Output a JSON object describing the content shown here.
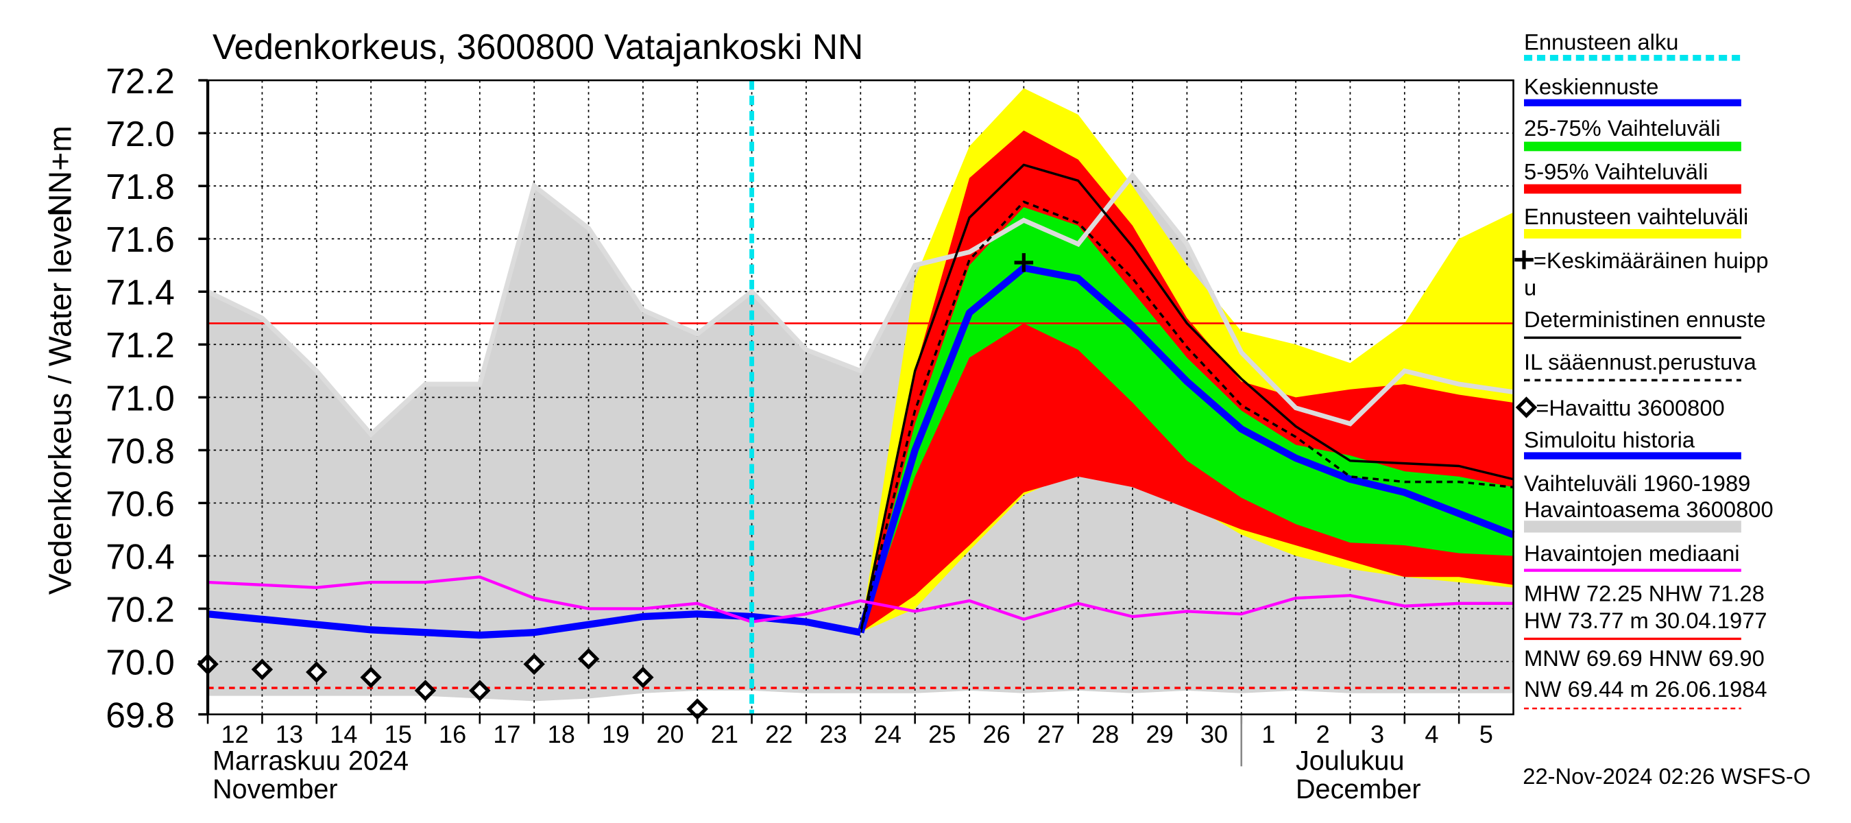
{
  "chart_data": {
    "type": "line",
    "title": "Vedenkorkeus, 3600800 Vatajankoski NN",
    "ylabel": "Vedenkorkeus / Water level",
    "ylabel2": "NN+m",
    "xlim": [
      0,
      24
    ],
    "ylim": [
      69.8,
      72.2
    ],
    "yticks": [
      69.8,
      {
        "value": 70,
        "label": "70.0"
      },
      70.2,
      70.4,
      70.6,
      70.8,
      {
        "value": 71,
        "label": "71.0"
      },
      71.2,
      71.4,
      71.6,
      71.8,
      {
        "value": 72,
        "label": "72.0"
      },
      72.2
    ],
    "xticks": [
      {
        "value": 0,
        "label": "12"
      },
      {
        "value": 1,
        "label": "13"
      },
      {
        "value": 2,
        "label": "14"
      },
      {
        "value": 3,
        "label": "15"
      },
      {
        "value": 4,
        "label": "16"
      },
      {
        "value": 5,
        "label": "17"
      },
      {
        "value": 6,
        "label": "18"
      },
      {
        "value": 7,
        "label": "19"
      },
      {
        "value": 8,
        "label": "20"
      },
      {
        "value": 9,
        "label": "21"
      },
      {
        "value": 10,
        "label": "22"
      },
      {
        "value": 11,
        "label": "23"
      },
      {
        "value": 12,
        "label": "24"
      },
      {
        "value": 13,
        "label": "25"
      },
      {
        "value": 14,
        "label": "26"
      },
      {
        "value": 15,
        "label": "27"
      },
      {
        "value": 16,
        "label": "28"
      },
      {
        "value": 17,
        "label": "29"
      },
      {
        "value": 18,
        "label": "30"
      },
      {
        "value": 19,
        "label": "1"
      },
      {
        "value": 20,
        "label": "2"
      },
      {
        "value": 21,
        "label": "3"
      },
      {
        "value": 22,
        "label": "4"
      },
      {
        "value": 23,
        "label": "5"
      }
    ],
    "grid": true,
    "x_groups": [
      {
        "value": 0,
        "label": "Marraskuu 2024",
        "label2": "November"
      },
      {
        "value": 19,
        "label": "Joulukuu",
        "label2": "December"
      }
    ],
    "forecast_start": {
      "name": "Ennusteen alku",
      "x": 10,
      "color": "#00e5ee"
    },
    "bands": [
      {
        "name": "Vaihteluväli 1960-1989",
        "name2": " Havaintoasema 3600800",
        "color": "#d3d3d3",
        "x": [
          0,
          1,
          2,
          3,
          4,
          5,
          6,
          7,
          8,
          9,
          10,
          11,
          12,
          13,
          14,
          15,
          16,
          17,
          18,
          19,
          20,
          21,
          22,
          23,
          24
        ],
        "upper": [
          71.4,
          71.3,
          71.1,
          70.86,
          71.05,
          71.05,
          71.8,
          71.64,
          71.33,
          71.24,
          71.4,
          71.18,
          71.1,
          71.5,
          71.55,
          71.67,
          71.58,
          71.84,
          71.58,
          71.17,
          70.96,
          70.9,
          71.1,
          71.05,
          71.02
        ],
        "lower": [
          69.87,
          69.87,
          69.87,
          69.87,
          69.87,
          69.86,
          69.85,
          69.86,
          69.88,
          69.89,
          69.89,
          69.88,
          69.88,
          69.88,
          69.89,
          69.88,
          69.89,
          69.88,
          69.89,
          69.88,
          69.89,
          69.88,
          69.88,
          69.88,
          69.88
        ]
      },
      {
        "name": "Ennusteen vaihteluväli",
        "color": "#ffff00",
        "x": [
          12,
          13,
          14,
          15,
          16,
          17,
          18,
          19,
          20,
          21,
          22,
          23,
          24
        ],
        "upper": [
          70.11,
          71.45,
          71.95,
          72.17,
          72.07,
          71.8,
          71.5,
          71.25,
          71.2,
          71.13,
          71.28,
          71.6,
          71.7
        ],
        "lower": [
          70.11,
          70.2,
          70.42,
          70.63,
          70.72,
          70.67,
          70.6,
          70.48,
          70.4,
          70.35,
          70.32,
          70.3,
          70.28
        ]
      },
      {
        "name": "5-95% Vaihteluväli",
        "color": "#ff0000",
        "x": [
          12,
          13,
          14,
          15,
          16,
          17,
          18,
          19,
          20,
          21,
          22,
          23,
          24
        ],
        "upper": [
          70.11,
          71.1,
          71.83,
          72.01,
          71.9,
          71.65,
          71.3,
          71.06,
          71.0,
          71.03,
          71.05,
          71.01,
          70.98
        ],
        "lower": [
          70.11,
          70.25,
          70.44,
          70.64,
          70.7,
          70.66,
          70.58,
          70.5,
          70.44,
          70.38,
          70.32,
          70.32,
          70.29
        ]
      },
      {
        "name": "25-75% Vaihteluväli",
        "color": "#00ee00",
        "x": [
          12,
          13,
          14,
          15,
          16,
          17,
          18,
          19,
          20,
          21,
          22,
          23,
          24
        ],
        "upper": [
          70.11,
          70.9,
          71.5,
          71.72,
          71.65,
          71.4,
          71.15,
          70.95,
          70.82,
          70.78,
          70.72,
          70.7,
          70.66
        ],
        "lower": [
          70.11,
          70.7,
          71.15,
          71.28,
          71.18,
          70.98,
          70.76,
          70.62,
          70.52,
          70.45,
          70.44,
          70.41,
          70.4
        ]
      }
    ],
    "series": [
      {
        "name": "Keskiennuste",
        "color": "#0000ff",
        "style": "thick",
        "x": [
          12,
          13,
          14,
          15,
          16,
          17,
          18,
          19,
          20,
          21,
          22,
          23,
          24
        ],
        "values": [
          70.11,
          70.8,
          71.32,
          71.49,
          71.45,
          71.27,
          71.06,
          70.88,
          70.77,
          70.69,
          70.64,
          70.56,
          70.48
        ]
      },
      {
        "name": "Deterministinen ennuste",
        "color": "#000000",
        "style": "thin",
        "x": [
          12,
          13,
          14,
          15,
          16,
          17,
          18,
          19,
          20,
          21,
          22,
          23,
          24
        ],
        "values": [
          70.11,
          71.1,
          71.68,
          71.88,
          71.82,
          71.57,
          71.28,
          71.07,
          70.89,
          70.76,
          70.75,
          70.74,
          70.69
        ]
      },
      {
        "name": "IL sääennust.perustuva",
        "color": "#000000",
        "style": "dashed",
        "x": [
          12,
          13,
          14,
          15,
          16,
          17,
          18,
          19,
          20,
          21,
          22,
          23,
          24
        ],
        "values": [
          70.11,
          70.95,
          71.52,
          71.74,
          71.66,
          71.45,
          71.19,
          70.97,
          70.85,
          70.7,
          70.68,
          70.68,
          70.66
        ]
      },
      {
        "name": "Simuloitu historia",
        "color": "#0000ff",
        "style": "thick",
        "x": [
          0,
          1,
          2,
          3,
          4,
          5,
          6,
          7,
          8,
          9,
          10,
          11,
          12
        ],
        "values": [
          70.18,
          70.16,
          70.14,
          70.12,
          70.11,
          70.1,
          70.11,
          70.14,
          70.17,
          70.18,
          70.17,
          70.15,
          70.11
        ]
      },
      {
        "name": "Havaintojen mediaani",
        "color": "#ff00ff",
        "style": "medium",
        "x": [
          0,
          1,
          2,
          3,
          4,
          5,
          6,
          7,
          8,
          9,
          10,
          11,
          12,
          13,
          14,
          15,
          16,
          17,
          18,
          19,
          20,
          21,
          22,
          23,
          24
        ],
        "values": [
          70.3,
          70.29,
          70.28,
          70.3,
          70.3,
          70.32,
          70.24,
          70.2,
          70.2,
          70.22,
          70.15,
          70.18,
          70.23,
          70.19,
          70.23,
          70.16,
          70.22,
          70.17,
          70.19,
          70.18,
          70.24,
          70.25,
          70.21,
          70.22,
          70.22
        ]
      },
      {
        "name": "=Havaittu 3600800",
        "color": "#000000",
        "style": "diamond",
        "x": [
          0,
          1,
          2,
          3,
          4,
          5,
          6,
          7,
          8,
          9
        ],
        "values": [
          69.99,
          69.97,
          69.96,
          69.94,
          69.89,
          69.89,
          69.99,
          70.01,
          69.94,
          69.82
        ]
      }
    ],
    "peak": {
      "name": "=Keskimääräinen huipp",
      "name2": "u",
      "x": 15,
      "y": 71.51,
      "color": "#000000"
    },
    "reference_lines": [
      {
        "value": 71.28,
        "color": "#ff0000",
        "style": "solid",
        "label": "MHW  72.25 NHW  71.28",
        "label2": "HW  73.77 m 30.04.1977"
      },
      {
        "value": 69.9,
        "color": "#ff0000",
        "style": "dashed",
        "label": "MNW  69.69 HNW  69.90",
        "label2": "NW  69.44 m 26.06.1984"
      }
    ],
    "footer": "22-Nov-2024 02:26 WSFS-O"
  }
}
